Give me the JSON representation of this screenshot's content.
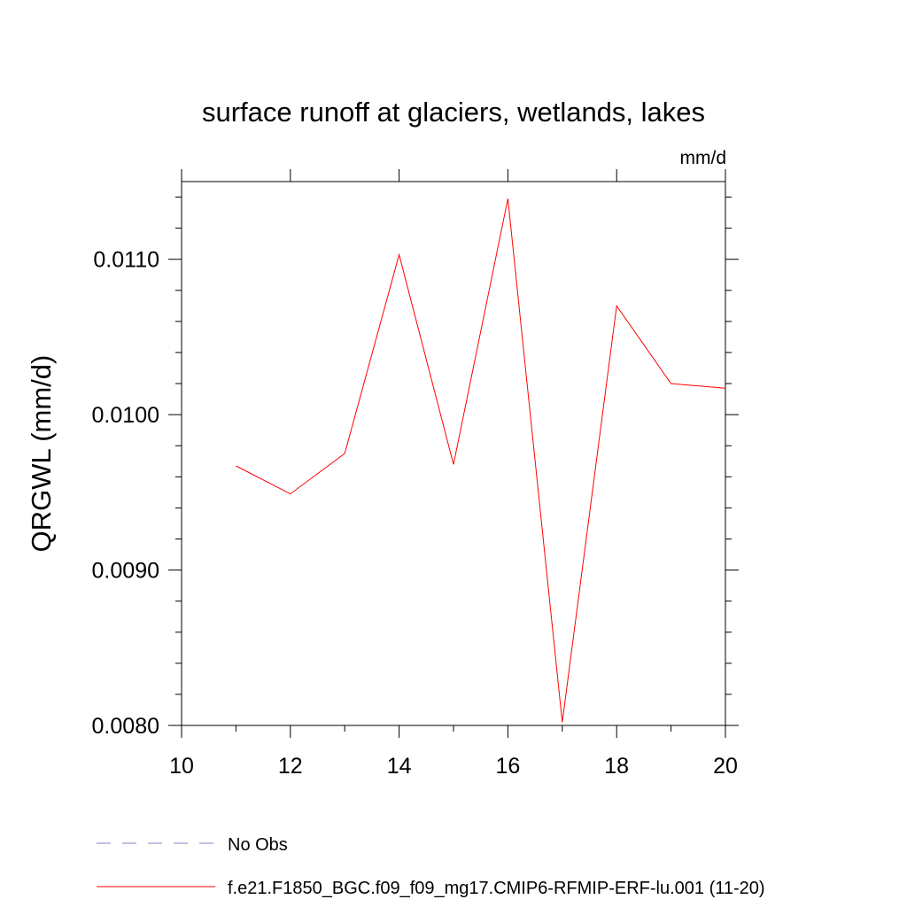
{
  "chart_data": {
    "type": "line",
    "title": "surface runoff at glaciers, wetlands, lakes",
    "units": "mm/d",
    "ylabel": "QRGWL  (mm/d)",
    "xlabel": "",
    "xlim": [
      10,
      20
    ],
    "ylim": [
      0.008,
      0.0115
    ],
    "x_ticks": [
      10,
      12,
      14,
      16,
      18,
      20
    ],
    "x_tick_labels": [
      "10",
      "12",
      "14",
      "16",
      "18",
      "20"
    ],
    "y_ticks": [
      0.008,
      0.009,
      0.01,
      0.011
    ],
    "y_tick_labels": [
      "0.0080",
      "0.0090",
      "0.0100",
      "0.0110"
    ],
    "grid": false,
    "legend_position": "bottom",
    "series": [
      {
        "name": "No Obs",
        "color": "#8080c0",
        "dash": "dashed",
        "x": [],
        "y": []
      },
      {
        "name": "f.e21.F1850_BGC.f09_f09_mg17.CMIP6-RFMIP-ERF-lu.001 (11-20)",
        "color": "#ff0000",
        "dash": "solid",
        "x": [
          11,
          12,
          13,
          14,
          15,
          16,
          17,
          18,
          19,
          20
        ],
        "y": [
          0.00967,
          0.00949,
          0.00975,
          0.01103,
          0.00968,
          0.01139,
          0.00802,
          0.0107,
          0.0102,
          0.01017
        ]
      }
    ]
  }
}
